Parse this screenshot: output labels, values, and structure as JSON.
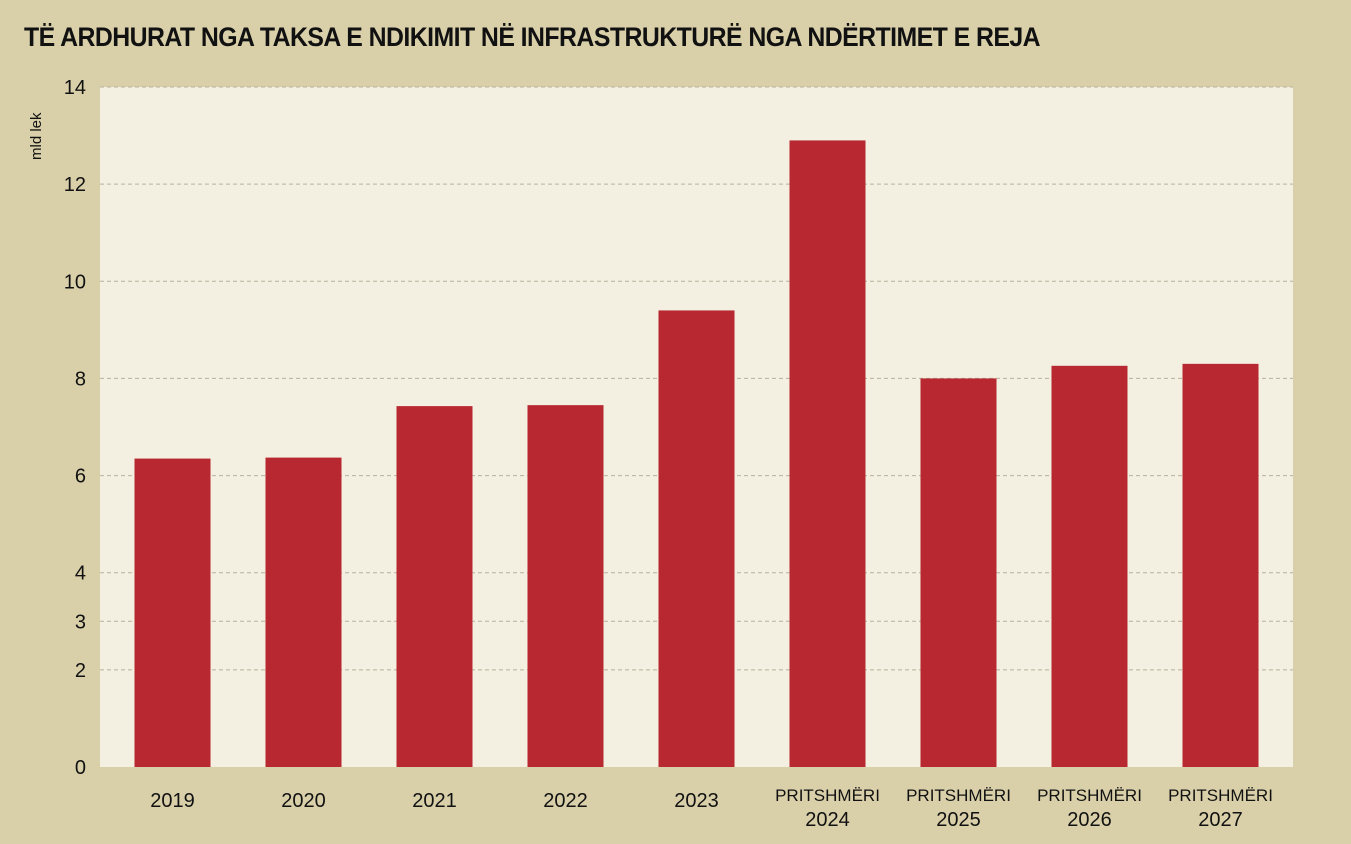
{
  "title": "TË ARDHURAT NGA TAKSA E NDIKIMIT NË INFRASTRUKTURË NGA NDËRTIMET E REJA",
  "colors": {
    "background": "#d9d0a9",
    "plot": "#f3efe1",
    "bar": "#b72830",
    "grid": "#b9b19a"
  },
  "chart_data": {
    "type": "bar",
    "title": "TË ARDHURAT NGA TAKSA E NDIKIMIT NË INFRASTRUKTURË NGA NDËRTIMET E REJA",
    "xlabel": "",
    "ylabel": "mld lek",
    "categories": [
      [
        "2019"
      ],
      [
        "2020"
      ],
      [
        "2021"
      ],
      [
        "2022"
      ],
      [
        "2023"
      ],
      [
        "PRITSHMËRI",
        "2024"
      ],
      [
        "PRITSHMËRI",
        "2025"
      ],
      [
        "PRITSHMËRI",
        "2026"
      ],
      [
        "PRITSHMËRI",
        "2027"
      ]
    ],
    "values": [
      6.35,
      6.37,
      7.43,
      7.45,
      9.4,
      12.9,
      8.0,
      8.26,
      8.3
    ],
    "ylim": [
      0,
      14
    ],
    "yticks": [
      0,
      2,
      3,
      4,
      6,
      8,
      10,
      12,
      14
    ],
    "grid": true
  }
}
